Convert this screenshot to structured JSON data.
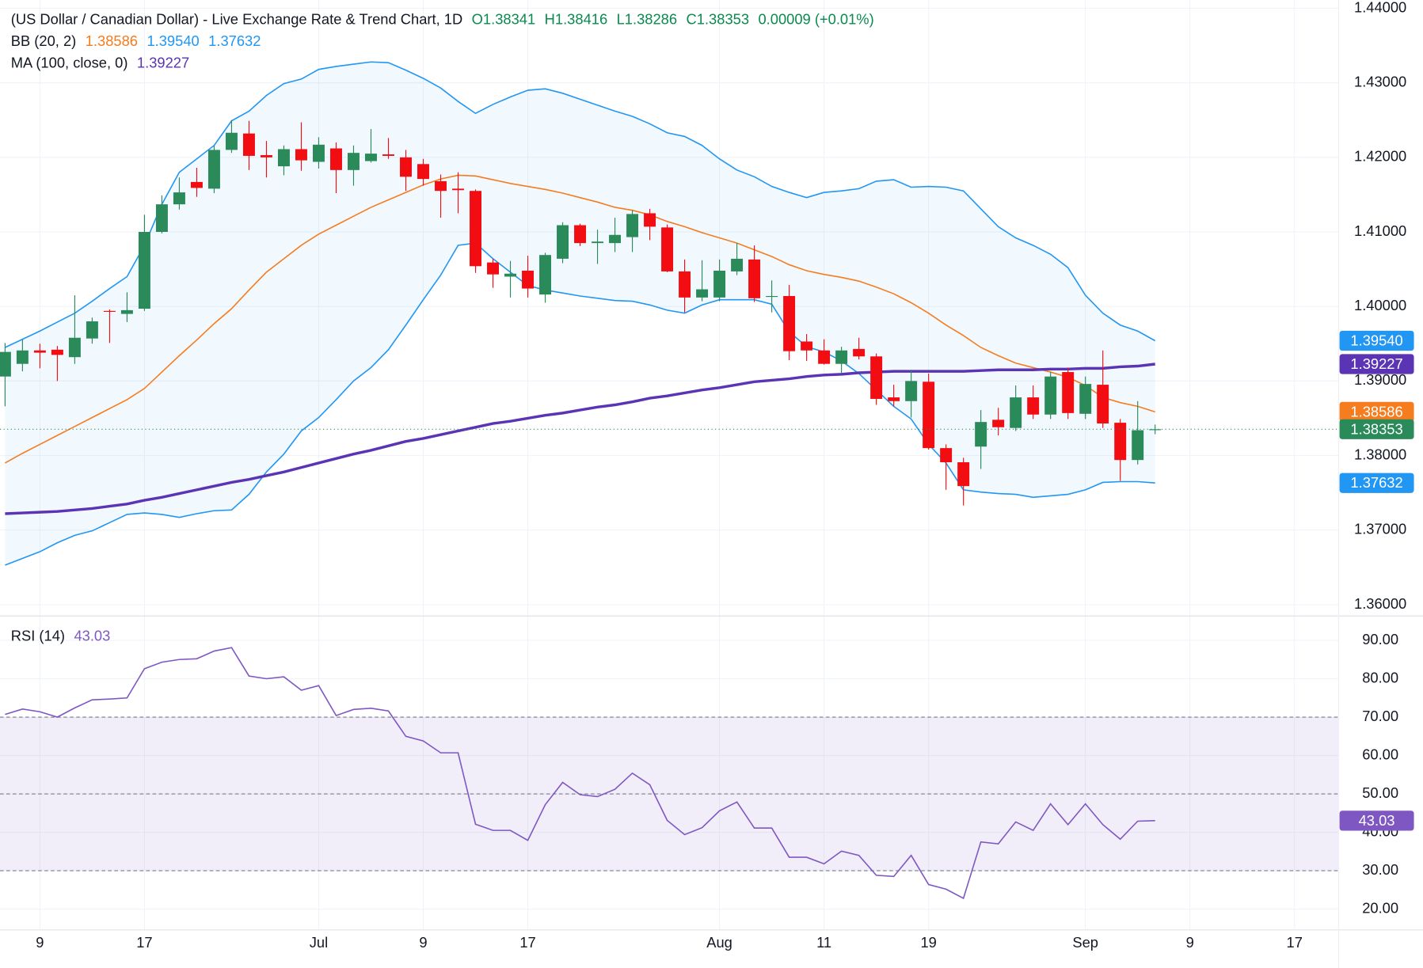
{
  "chart_data": [
    {
      "type": "candlestick",
      "title": "(US Dollar / Canadian Dollar) - Live Exchange Rate & Trend Chart, 1D",
      "ohlc_labels": [
        "O1.38341",
        "H1.38416",
        "L1.38286",
        "C1.38353"
      ],
      "change_label": "0.00009 (+0.01%)",
      "last_label": "1.38353",
      "up_color": "#2a8a5a",
      "down_color": "#f20d12",
      "label_color": "#0a8a4e",
      "open": [
        1.3906,
        1.3923,
        1.3941,
        1.3942,
        1.3932,
        1.3957,
        1.3994,
        1.399,
        1.3997,
        1.41,
        1.4137,
        1.4167,
        1.4158,
        1.421,
        1.4232,
        1.4203,
        1.4188,
        1.4211,
        1.4194,
        1.4212,
        1.4183,
        1.4195,
        1.4204,
        1.42,
        1.4191,
        1.4168,
        1.4158,
        1.4155,
        1.4059,
        1.404,
        1.4048,
        1.4016,
        1.4064,
        1.4109,
        1.4085,
        1.4085,
        1.4093,
        1.4125,
        1.4106,
        1.4047,
        1.4012,
        1.4012,
        1.4047,
        1.4063,
        1.4013,
        1.4014,
        1.3953,
        1.3941,
        1.3923,
        1.3943,
        1.3933,
        1.3878,
        1.3873,
        1.3899,
        1.381,
        1.3791,
        1.3812,
        1.3848,
        1.3837,
        1.3878,
        1.3855,
        1.3912,
        1.3856,
        1.3895,
        1.3844,
        1.3794,
        1.38341
      ],
      "high": [
        1.3951,
        1.3956,
        1.395,
        1.3947,
        1.4015,
        1.3985,
        1.3996,
        1.4019,
        1.4123,
        1.4149,
        1.4173,
        1.4186,
        1.4216,
        1.425,
        1.4249,
        1.4222,
        1.4216,
        1.4247,
        1.4227,
        1.422,
        1.4216,
        1.4238,
        1.4226,
        1.421,
        1.4198,
        1.4177,
        1.418,
        1.4157,
        1.4064,
        1.4061,
        1.4068,
        1.4072,
        1.4113,
        1.4111,
        1.4103,
        1.4119,
        1.4129,
        1.4131,
        1.411,
        1.4063,
        1.4062,
        1.4063,
        1.4085,
        1.4082,
        1.4035,
        1.4029,
        1.3963,
        1.3956,
        1.3946,
        1.3958,
        1.3937,
        1.3895,
        1.3915,
        1.391,
        1.3815,
        1.3797,
        1.3861,
        1.3864,
        1.3894,
        1.3894,
        1.3912,
        1.3918,
        1.3906,
        1.3941,
        1.3849,
        1.3873,
        1.38416
      ],
      "low": [
        1.3866,
        1.3913,
        1.3917,
        1.39,
        1.3923,
        1.395,
        1.3951,
        1.3979,
        1.3994,
        1.4098,
        1.413,
        1.4147,
        1.4152,
        1.4206,
        1.4183,
        1.4173,
        1.4176,
        1.4182,
        1.4185,
        1.4152,
        1.4162,
        1.4193,
        1.4198,
        1.4155,
        1.4162,
        1.4119,
        1.4125,
        1.4045,
        1.4025,
        1.4012,
        1.4012,
        1.4005,
        1.4058,
        1.4081,
        1.4057,
        1.4073,
        1.4073,
        1.4089,
        1.4046,
        1.3992,
        1.4007,
        1.4007,
        1.4042,
        1.4006,
        1.3992,
        1.3928,
        1.3927,
        1.3922,
        1.391,
        1.3929,
        1.3868,
        1.3866,
        1.3851,
        1.3808,
        1.3754,
        1.3733,
        1.3782,
        1.3827,
        1.3833,
        1.3849,
        1.3849,
        1.3849,
        1.3849,
        1.3837,
        1.3766,
        1.3788,
        1.38286
      ],
      "close": [
        1.3939,
        1.3941,
        1.3938,
        1.3935,
        1.3958,
        1.398,
        1.3993,
        1.3995,
        1.41,
        1.4137,
        1.4153,
        1.4159,
        1.421,
        1.4233,
        1.4202,
        1.42,
        1.4211,
        1.4196,
        1.4217,
        1.4183,
        1.4206,
        1.4205,
        1.4202,
        1.4174,
        1.4171,
        1.4155,
        1.4156,
        1.4054,
        1.4043,
        1.4044,
        1.4024,
        1.4069,
        1.4109,
        1.4085,
        1.4087,
        1.4096,
        1.4124,
        1.4107,
        1.4047,
        1.4012,
        1.4023,
        1.4048,
        1.4064,
        1.4011,
        1.4014,
        1.394,
        1.3941,
        1.3923,
        1.3941,
        1.3933,
        1.3876,
        1.3873,
        1.39,
        1.381,
        1.3791,
        1.3759,
        1.3845,
        1.3838,
        1.3878,
        1.3855,
        1.3906,
        1.3857,
        1.3896,
        1.3843,
        1.3794,
        1.3834,
        1.38353
      ],
      "indicators": [
        {
          "name": "BB (20, 2)",
          "fill": "rgba(33,150,243,0.06)",
          "lines": [
            {
              "color": "#f57c1f",
              "last_label": "1.38586",
              "values": [
                1.379,
                1.3803,
                1.3815,
                1.3827,
                1.3839,
                1.3851,
                1.3863,
                1.3875,
                1.389,
                1.3912,
                1.3934,
                1.3955,
                1.3977,
                1.3997,
                1.4022,
                1.4046,
                1.4064,
                1.4082,
                1.4097,
                1.4109,
                1.4121,
                1.4133,
                1.4143,
                1.4153,
                1.4163,
                1.4171,
                1.4176,
                1.4175,
                1.417,
                1.4165,
                1.4161,
                1.4157,
                1.4152,
                1.4146,
                1.414,
                1.4133,
                1.4129,
                1.4123,
                1.4114,
                1.4107,
                1.4099,
                1.4092,
                1.4085,
                1.4076,
                1.4067,
                1.4056,
                1.4048,
                1.4043,
                1.4039,
                1.4034,
                1.4026,
                1.4017,
                1.4005,
                1.3991,
                1.3975,
                1.3961,
                1.3945,
                1.3934,
                1.3924,
                1.3918,
                1.3912,
                1.3905,
                1.3894,
                1.3878,
                1.3871,
                1.3866,
                1.38586
              ]
            },
            {
              "color": "#2196f3",
              "last_label": "1.39540",
              "values": [
                1.3945,
                1.3956,
                1.3967,
                1.3979,
                1.3991,
                1.4007,
                1.4024,
                1.404,
                1.4082,
                1.4137,
                1.418,
                1.4198,
                1.4216,
                1.4249,
                1.4262,
                1.4283,
                1.4299,
                1.4305,
                1.4318,
                1.4322,
                1.4325,
                1.4328,
                1.4327,
                1.4317,
                1.4306,
                1.4293,
                1.4275,
                1.4259,
                1.4271,
                1.4281,
                1.429,
                1.4292,
                1.4286,
                1.4278,
                1.427,
                1.4262,
                1.4255,
                1.4245,
                1.4233,
                1.4228,
                1.4216,
                1.4198,
                1.4183,
                1.4174,
                1.4161,
                1.4153,
                1.4146,
                1.4153,
                1.4155,
                1.4158,
                1.4168,
                1.417,
                1.416,
                1.4161,
                1.416,
                1.4155,
                1.4131,
                1.4107,
                1.4092,
                1.4082,
                1.407,
                1.4052,
                1.4015,
                1.3991,
                1.3975,
                1.3967,
                1.3954
              ]
            },
            {
              "color": "#2196f3",
              "last_label": "1.37632",
              "values": [
                1.3653,
                1.3662,
                1.3671,
                1.3683,
                1.3693,
                1.3699,
                1.371,
                1.3721,
                1.3723,
                1.3721,
                1.3717,
                1.3722,
                1.3726,
                1.3727,
                1.3748,
                1.3778,
                1.3802,
                1.3833,
                1.3851,
                1.3875,
                1.39,
                1.3918,
                1.3942,
                1.3975,
                1.4009,
                1.4042,
                1.4082,
                1.4085,
                1.4064,
                1.4046,
                1.4028,
                1.4022,
                1.4018,
                1.4014,
                1.4011,
                1.4008,
                1.4007,
                1.4002,
                1.3995,
                1.3991,
                1.4002,
                1.4009,
                1.4009,
                1.4009,
                1.4003,
                1.3966,
                1.3946,
                1.3939,
                1.3927,
                1.391,
                1.3888,
                1.3866,
                1.3849,
                1.3815,
                1.379,
                1.3754,
                1.3751,
                1.3749,
                1.3748,
                1.3744,
                1.3746,
                1.3748,
                1.3754,
                1.3764,
                1.3765,
                1.3765,
                1.37632
              ]
            }
          ]
        },
        {
          "name": "MA (100, close, 0)",
          "lines": [
            {
              "color": "#5b34b5",
              "last_label": "1.39227",
              "values": [
                1.3722,
                1.3723,
                1.3724,
                1.3725,
                1.3727,
                1.3729,
                1.3732,
                1.3735,
                1.374,
                1.3744,
                1.3749,
                1.3754,
                1.3759,
                1.3764,
                1.3768,
                1.3773,
                1.3778,
                1.3784,
                1.379,
                1.3796,
                1.3802,
                1.3807,
                1.3813,
                1.3819,
                1.3823,
                1.3828,
                1.3833,
                1.3838,
                1.3843,
                1.3846,
                1.385,
                1.3854,
                1.3857,
                1.3861,
                1.3865,
                1.3868,
                1.3872,
                1.3877,
                1.388,
                1.3884,
                1.3888,
                1.3891,
                1.3895,
                1.3899,
                1.3901,
                1.3903,
                1.3906,
                1.3908,
                1.3909,
                1.3911,
                1.3912,
                1.3913,
                1.3913,
                1.3913,
                1.3913,
                1.3913,
                1.3914,
                1.3915,
                1.3915,
                1.3915,
                1.3916,
                1.3916,
                1.3917,
                1.3917,
                1.3919,
                1.392,
                1.39227
              ]
            }
          ]
        }
      ],
      "xlim": [
        -0.29,
        76.53
      ],
      "ylim": [
        1.3586,
        1.4411
      ],
      "yticks": [
        {
          "value": 1.36,
          "label": "1.36000"
        },
        {
          "value": 1.37,
          "label": "1.37000"
        },
        {
          "value": 1.38,
          "label": "1.38000"
        },
        {
          "value": 1.39,
          "label": "1.39000"
        },
        {
          "value": 1.4,
          "label": "1.40000"
        },
        {
          "value": 1.41,
          "label": "1.41000"
        },
        {
          "value": 1.42,
          "label": "1.42000"
        },
        {
          "value": 1.43,
          "label": "1.43000"
        },
        {
          "value": 1.44,
          "label": "1.44000"
        }
      ],
      "grid": true
    },
    {
      "type": "line",
      "series": [
        {
          "name": "RSI (14)",
          "color": "#7e57c2",
          "last_label": "43.03",
          "values": [
            70.7,
            72.1,
            71.4,
            70.0,
            72.4,
            74.5,
            74.7,
            75.0,
            82.6,
            84.3,
            85.0,
            85.2,
            87.2,
            88.1,
            80.7,
            80.0,
            80.5,
            77.0,
            78.2,
            70.4,
            72.0,
            72.3,
            71.6,
            65.0,
            63.8,
            60.7,
            60.7,
            42.1,
            40.5,
            40.5,
            37.9,
            47.2,
            53.0,
            49.8,
            49.3,
            51.2,
            55.4,
            52.4,
            43.1,
            39.4,
            41.2,
            45.6,
            47.9,
            41.1,
            41.1,
            33.5,
            33.5,
            31.8,
            35.1,
            34.0,
            28.8,
            28.5,
            34.0,
            26.4,
            25.2,
            22.8,
            37.5,
            37.0,
            42.7,
            40.5,
            47.4,
            42.0,
            47.4,
            42.0,
            38.2,
            42.9,
            43.03
          ]
        }
      ],
      "levels": [
        70,
        50,
        30
      ],
      "band_fill": "rgba(126,87,194,0.1)",
      "xlim": [
        -0.29,
        76.53
      ],
      "ylim": [
        14.6,
        96.1
      ],
      "yticks": [
        {
          "value": 20,
          "label": "20.00"
        },
        {
          "value": 30,
          "label": "30.00"
        },
        {
          "value": 40,
          "label": "40.00"
        },
        {
          "value": 50,
          "label": "50.00"
        },
        {
          "value": 60,
          "label": "60.00"
        },
        {
          "value": 70,
          "label": "70.00"
        },
        {
          "value": 80,
          "label": "80.00"
        },
        {
          "value": 90,
          "label": "90.00"
        }
      ],
      "xticks": [
        {
          "value": 2,
          "label": "9"
        },
        {
          "value": 8,
          "label": "17"
        },
        {
          "value": 18,
          "label": "Jul"
        },
        {
          "value": 24,
          "label": "9"
        },
        {
          "value": 30,
          "label": "17"
        },
        {
          "value": 41,
          "label": "Aug"
        },
        {
          "value": 47,
          "label": "11"
        },
        {
          "value": 53,
          "label": "19"
        },
        {
          "value": 62,
          "label": "Sep"
        },
        {
          "value": 68,
          "label": "9"
        },
        {
          "value": 74,
          "label": "17"
        }
      ],
      "grid": true
    }
  ]
}
